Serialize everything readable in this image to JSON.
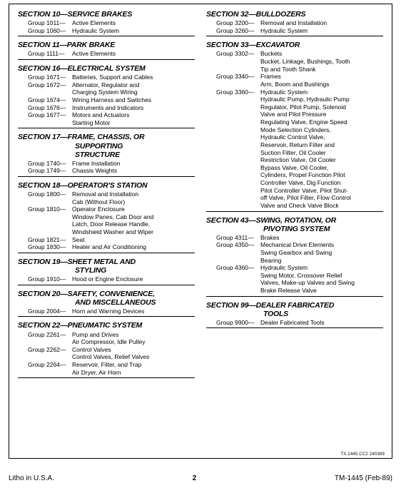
{
  "footer": {
    "left": "Litho in U.S.A.",
    "page": "2",
    "right": "TM-1445 (Feb-89)"
  },
  "refnum": "TX,1445 CC2 240389",
  "left_sections": [
    {
      "title": "SECTION 10—SERVICE BRAKES",
      "groups": [
        {
          "g": "Group 1011—",
          "t": "Active Elements"
        },
        {
          "g": "Group 1060—",
          "t": "Hydraulic System"
        }
      ]
    },
    {
      "title": "SECTION 11—PARK BRAKE",
      "groups": [
        {
          "g": "Group 1111—",
          "t": "Active Elements"
        }
      ]
    },
    {
      "title": "SECTION 16—ELECTRICAL SYSTEM",
      "groups": [
        {
          "g": "Group 1671—",
          "t": "Batteries, Support and Cables"
        },
        {
          "g": "Group 1672—",
          "t": "Alternator, Regulator and",
          "sub": [
            "Charging System Wiring"
          ]
        },
        {
          "g": "Group 1674—",
          "t": "Wiring Harness and Switches"
        },
        {
          "g": "Group 1676—",
          "t": "Instruments and Indicators"
        },
        {
          "g": "Group 1677—",
          "t": "Motors and Actuators",
          "sub": [
            "Starting Motor"
          ]
        }
      ]
    },
    {
      "title": "SECTION 17—FRAME, CHASSIS, OR",
      "title_cont": [
        "SUPPORTING",
        "STRUCTURE"
      ],
      "groups": [
        {
          "g": "Group 1740—",
          "t": "Frame Installation"
        },
        {
          "g": "Group 1749—",
          "t": "Chassis Weights"
        }
      ]
    },
    {
      "title": "SECTION 18—OPERATOR'S STATION",
      "groups": [
        {
          "g": "Group 1800—",
          "t": "Removal and Installation",
          "sub": [
            "Cab (Without Floor)"
          ]
        },
        {
          "g": "Group 1810—",
          "t": "Operator Enclosure",
          "sub": [
            "Window Panes, Cab Door and",
            "Latch, Door Release Handle,",
            "Windshield Washer and Wiper"
          ]
        },
        {
          "g": "Group 1821—",
          "t": "Seat"
        },
        {
          "g": "Group 1830—",
          "t": "Heater and Air Conditioning"
        }
      ]
    },
    {
      "title": "SECTION 19—SHEET METAL AND",
      "title_cont": [
        "STYLING"
      ],
      "groups": [
        {
          "g": "Group 1910—",
          "t": "Hood or Engine Enclosure"
        }
      ]
    },
    {
      "title": "SECTION 20—SAFETY, CONVENIENCE,",
      "title_cont": [
        "AND MISCELLANEOUS"
      ],
      "groups": [
        {
          "g": "Group 2004—",
          "t": "Horn and Warning Devices"
        }
      ]
    },
    {
      "title": "SECTION 22—PNEUMATIC SYSTEM",
      "groups": [
        {
          "g": "Group 2261—",
          "t": "Pump and Drives",
          "sub": [
            "Air Compressor, Idle Pulley"
          ]
        },
        {
          "g": "Group 2262—",
          "t": "Control Valves",
          "sub": [
            "Control Valves, Relief Valves"
          ]
        },
        {
          "g": "Group 2264—",
          "t": "Reservoir, Filter, and Trap",
          "sub": [
            "Air Dryer, Air Horn"
          ]
        }
      ]
    }
  ],
  "right_sections": [
    {
      "title": "SECTION 32—BULLDOZERS",
      "groups": [
        {
          "g": "Group 3200—",
          "t": "Removal and Installation"
        },
        {
          "g": "Group 3260—",
          "t": "Hydraulic System"
        }
      ]
    },
    {
      "title": "SECTION 33—EXCAVATOR",
      "groups": [
        {
          "g": "Group 3302—",
          "t": "Buckets",
          "sub": [
            "Bucket, Linkage, Bushings, Tooth",
            "Tip and Tooth Shank"
          ]
        },
        {
          "g": "Group 3340—",
          "t": "Frames",
          "sub": [
            "Arm, Boom and Bushings"
          ]
        },
        {
          "g": "Group 3360—",
          "t": "Hydraulic System",
          "sub": [
            "Hydraulic Pump, Hydraulic Pump",
            "Regulator, Pilot Pump, Solenoid",
            "Valve and Pilot Pressure",
            "Regulating Valve, Engine Speed",
            "Mode Selection Cylinders,",
            "Hydraulic Control Valve,",
            "Reservoir, Return Filter and",
            "Suction Filter, Oil Cooler",
            "Restriction Valve, Oil Cooler",
            "Bypass Valve, Oil Cooler,",
            "Cylinders, Propel Function Pilot",
            "Controller Valve, Dig Function",
            "Pilot Controller Valve, Pilot Shut-",
            "off Valve, Pilot Filter, Flow Control",
            "Valve and Check Valve Block"
          ]
        }
      ]
    },
    {
      "title": "SECTION 43—SWING, ROTATION, OR",
      "title_cont": [
        "PIVOTING SYSTEM"
      ],
      "groups": [
        {
          "g": "Group 4311—",
          "t": "Brakes"
        },
        {
          "g": "Group 4350—",
          "t": "Mechanical Drive Elements",
          "sub": [
            "Swing Gearbox and Swing",
            "Bearing"
          ]
        },
        {
          "g": "Group 4360—",
          "t": "Hydraulic System",
          "sub": [
            "Swing Motor, Crossover Relief",
            "Valves, Make-up Valves and Swing",
            "Brake Release Valve"
          ]
        }
      ]
    },
    {
      "title": "SECTION 99—DEALER FABRICATED",
      "title_cont": [
        "TOOLS"
      ],
      "groups": [
        {
          "g": "Group 9900—",
          "t": "Dealer Fabricated Tools"
        }
      ]
    }
  ]
}
